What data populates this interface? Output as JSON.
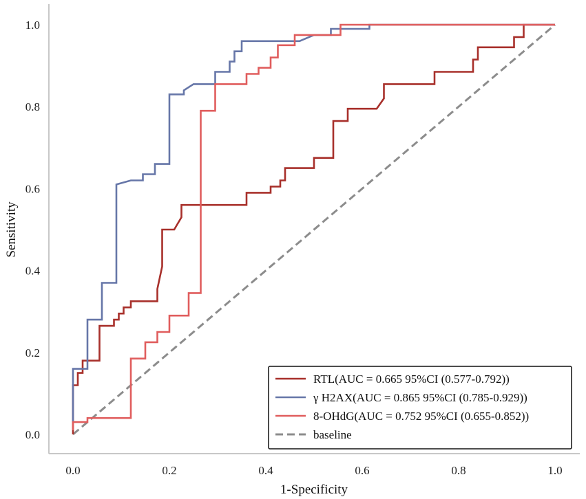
{
  "chart_data": {
    "type": "line",
    "title": "",
    "xlabel": "1-Specificity",
    "ylabel": "Sensitivity",
    "xlim": [
      -0.05,
      1.05
    ],
    "ylim": [
      -0.05,
      1.02
    ],
    "xticks": [
      "0.0",
      "0.2",
      "0.4",
      "0.6",
      "0.8",
      "1.0"
    ],
    "yticks": [
      "0.0",
      "0.2",
      "0.4",
      "0.6",
      "0.8",
      "1.0"
    ],
    "xtick_values": [
      0,
      0.2,
      0.4,
      0.6,
      0.8,
      1.0
    ],
    "ytick_values": [
      0,
      0.2,
      0.4,
      0.6,
      0.8,
      1.0
    ],
    "grid": false,
    "legend_position": "bottom-right",
    "series": [
      {
        "name": "RTL(AUC = 0.665 95%CI (0.577-0.792))",
        "color": "#a8302b",
        "dash": "solid",
        "points": [
          [
            0,
            0
          ],
          [
            0,
            0.12
          ],
          [
            0.01,
            0.12
          ],
          [
            0.01,
            0.15
          ],
          [
            0.02,
            0.15
          ],
          [
            0.02,
            0.18
          ],
          [
            0.03,
            0.18
          ],
          [
            0.055,
            0.18
          ],
          [
            0.055,
            0.265
          ],
          [
            0.085,
            0.265
          ],
          [
            0.085,
            0.28
          ],
          [
            0.095,
            0.28
          ],
          [
            0.095,
            0.295
          ],
          [
            0.105,
            0.295
          ],
          [
            0.105,
            0.31
          ],
          [
            0.12,
            0.31
          ],
          [
            0.12,
            0.325
          ],
          [
            0.175,
            0.325
          ],
          [
            0.175,
            0.355
          ],
          [
            0.185,
            0.41
          ],
          [
            0.185,
            0.5
          ],
          [
            0.21,
            0.5
          ],
          [
            0.215,
            0.51
          ],
          [
            0.225,
            0.53
          ],
          [
            0.225,
            0.56
          ],
          [
            0.36,
            0.56
          ],
          [
            0.36,
            0.59
          ],
          [
            0.41,
            0.59
          ],
          [
            0.41,
            0.605
          ],
          [
            0.43,
            0.605
          ],
          [
            0.43,
            0.62
          ],
          [
            0.44,
            0.62
          ],
          [
            0.44,
            0.65
          ],
          [
            0.5,
            0.65
          ],
          [
            0.5,
            0.675
          ],
          [
            0.54,
            0.675
          ],
          [
            0.54,
            0.765
          ],
          [
            0.57,
            0.765
          ],
          [
            0.57,
            0.795
          ],
          [
            0.63,
            0.795
          ],
          [
            0.645,
            0.82
          ],
          [
            0.645,
            0.855
          ],
          [
            0.75,
            0.855
          ],
          [
            0.75,
            0.885
          ],
          [
            0.83,
            0.885
          ],
          [
            0.83,
            0.915
          ],
          [
            0.84,
            0.915
          ],
          [
            0.84,
            0.945
          ],
          [
            0.915,
            0.945
          ],
          [
            0.915,
            0.97
          ],
          [
            0.935,
            0.97
          ],
          [
            0.935,
            1.0
          ],
          [
            1.0,
            1.0
          ]
        ]
      },
      {
        "name": "γ H2AX(AUC = 0.865 95%CI (0.785-0.929))",
        "color": "#6676a8",
        "dash": "solid",
        "points": [
          [
            0,
            0.03
          ],
          [
            0,
            0.16
          ],
          [
            0.03,
            0.16
          ],
          [
            0.03,
            0.28
          ],
          [
            0.06,
            0.28
          ],
          [
            0.06,
            0.37
          ],
          [
            0.09,
            0.37
          ],
          [
            0.09,
            0.61
          ],
          [
            0.12,
            0.62
          ],
          [
            0.145,
            0.62
          ],
          [
            0.145,
            0.635
          ],
          [
            0.17,
            0.635
          ],
          [
            0.17,
            0.66
          ],
          [
            0.2,
            0.66
          ],
          [
            0.2,
            0.83
          ],
          [
            0.23,
            0.83
          ],
          [
            0.23,
            0.84
          ],
          [
            0.25,
            0.855
          ],
          [
            0.295,
            0.855
          ],
          [
            0.295,
            0.885
          ],
          [
            0.325,
            0.885
          ],
          [
            0.325,
            0.91
          ],
          [
            0.335,
            0.91
          ],
          [
            0.335,
            0.935
          ],
          [
            0.35,
            0.935
          ],
          [
            0.35,
            0.96
          ],
          [
            0.47,
            0.96
          ],
          [
            0.5,
            0.975
          ],
          [
            0.535,
            0.975
          ],
          [
            0.535,
            0.99
          ],
          [
            0.615,
            0.99
          ],
          [
            0.615,
            1.0
          ],
          [
            1.0,
            1.0
          ]
        ]
      },
      {
        "name": "8-OHdG(AUC = 0.752 95%CI (0.655-0.852))",
        "color": "#e05d5d",
        "dash": "solid",
        "points": [
          [
            0,
            0.01
          ],
          [
            0,
            0.03
          ],
          [
            0.03,
            0.03
          ],
          [
            0.03,
            0.04
          ],
          [
            0.12,
            0.04
          ],
          [
            0.12,
            0.185
          ],
          [
            0.15,
            0.185
          ],
          [
            0.15,
            0.225
          ],
          [
            0.175,
            0.225
          ],
          [
            0.175,
            0.25
          ],
          [
            0.2,
            0.25
          ],
          [
            0.2,
            0.29
          ],
          [
            0.24,
            0.29
          ],
          [
            0.24,
            0.345
          ],
          [
            0.265,
            0.345
          ],
          [
            0.265,
            0.79
          ],
          [
            0.295,
            0.79
          ],
          [
            0.295,
            0.855
          ],
          [
            0.36,
            0.855
          ],
          [
            0.36,
            0.88
          ],
          [
            0.385,
            0.88
          ],
          [
            0.385,
            0.895
          ],
          [
            0.41,
            0.895
          ],
          [
            0.41,
            0.92
          ],
          [
            0.425,
            0.92
          ],
          [
            0.425,
            0.95
          ],
          [
            0.46,
            0.95
          ],
          [
            0.46,
            0.975
          ],
          [
            0.555,
            0.975
          ],
          [
            0.555,
            1.0
          ],
          [
            1.0,
            1.0
          ]
        ]
      },
      {
        "name": "baseline",
        "color": "#8c8c8c",
        "dash": "dashed",
        "points": [
          [
            0,
            0
          ],
          [
            1,
            1
          ]
        ]
      }
    ]
  }
}
